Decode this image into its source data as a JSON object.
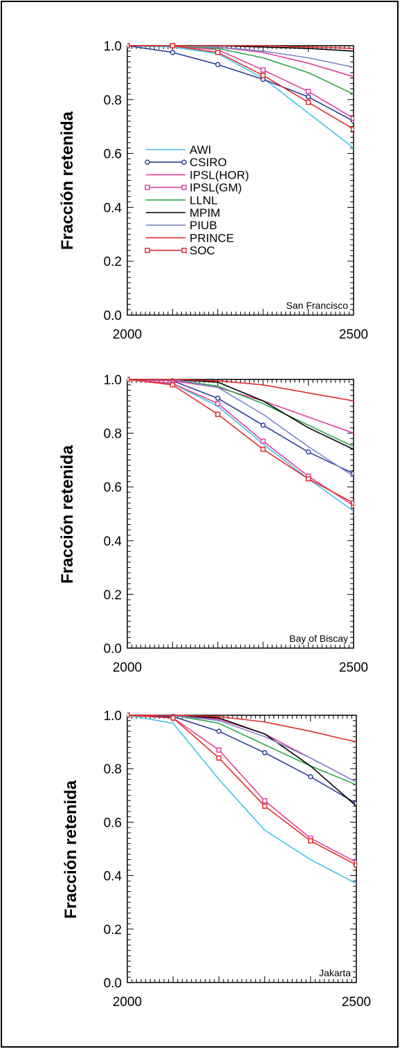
{
  "chart_data": [
    {
      "type": "line",
      "location": "San Francisco",
      "ylabel": "Fracción retenida",
      "xlim": [
        2000,
        2500
      ],
      "ylim": [
        0.0,
        1.0
      ],
      "xticks": [
        "2000",
        "2500"
      ],
      "yticks": [
        "0.0",
        "0.2",
        "0.4",
        "0.6",
        "0.8",
        "1.0"
      ],
      "legend": [
        "AWI",
        "CSIRO",
        "IPSL(HOR)",
        "IPSL(GM)",
        "LLNL",
        "MPIM",
        "PIUB",
        "PRINCE",
        "SOC"
      ],
      "legend_labels": [
        "AWI",
        "CSIRO",
        "IPSL(HOR)",
        "IPSL(GM)",
        "LLNL",
        "MPIM",
        "PIUB",
        "PRINCE",
        "SOC"
      ],
      "legend_placement": "lower-left",
      "series": [
        {
          "name": "AWI",
          "x": [
            2000,
            2100,
            2200,
            2300,
            2400,
            2500
          ],
          "y": [
            1.0,
            0.995,
            0.97,
            0.88,
            0.75,
            0.62
          ]
        },
        {
          "name": "CSIRO",
          "x": [
            2000,
            2100,
            2200,
            2300,
            2400,
            2500
          ],
          "y": [
            1.0,
            0.975,
            0.93,
            0.875,
            0.81,
            0.72
          ]
        },
        {
          "name": "IPSL(HOR)",
          "x": [
            2000,
            2100,
            2200,
            2300,
            2400,
            2500
          ],
          "y": [
            1.0,
            1.0,
            0.995,
            0.975,
            0.935,
            0.885
          ]
        },
        {
          "name": "IPSL(GM)",
          "x": [
            2000,
            2100,
            2200,
            2300,
            2400,
            2500
          ],
          "y": [
            1.0,
            1.0,
            0.985,
            0.91,
            0.83,
            0.73
          ]
        },
        {
          "name": "LLNL",
          "x": [
            2000,
            2100,
            2200,
            2300,
            2400,
            2500
          ],
          "y": [
            1.0,
            1.0,
            0.99,
            0.955,
            0.9,
            0.82
          ]
        },
        {
          "name": "MPIM",
          "x": [
            2000,
            2100,
            2200,
            2300,
            2400,
            2500
          ],
          "y": [
            1.0,
            1.0,
            1.0,
            0.995,
            0.99,
            0.98
          ]
        },
        {
          "name": "PIUB",
          "x": [
            2000,
            2100,
            2200,
            2300,
            2400,
            2500
          ],
          "y": [
            1.0,
            1.0,
            0.995,
            0.98,
            0.955,
            0.92
          ]
        },
        {
          "name": "PRINCE",
          "x": [
            2000,
            2100,
            2200,
            2300,
            2400,
            2500
          ],
          "y": [
            1.0,
            1.0,
            1.0,
            1.0,
            0.995,
            0.99
          ]
        },
        {
          "name": "SOC",
          "x": [
            2000,
            2100,
            2200,
            2300,
            2400,
            2500
          ],
          "y": [
            1.0,
            1.0,
            0.975,
            0.89,
            0.79,
            0.69
          ]
        }
      ]
    },
    {
      "type": "line",
      "location": "Bay of Biscay",
      "ylabel": "Fracción retenida",
      "xlim": [
        2000,
        2500
      ],
      "ylim": [
        0.0,
        1.0
      ],
      "xticks": [
        "2000",
        "2500"
      ],
      "yticks": [
        "0.0",
        "0.2",
        "0.4",
        "0.6",
        "0.8",
        "1.0"
      ],
      "series": [
        {
          "name": "AWI",
          "x": [
            2000,
            2100,
            2200,
            2300,
            2400,
            2500
          ],
          "y": [
            1.0,
            0.985,
            0.9,
            0.76,
            0.63,
            0.51
          ]
        },
        {
          "name": "CSIRO",
          "x": [
            2000,
            2100,
            2200,
            2300,
            2400,
            2500
          ],
          "y": [
            1.0,
            0.995,
            0.93,
            0.83,
            0.73,
            0.65
          ]
        },
        {
          "name": "IPSL(HOR)",
          "x": [
            2000,
            2100,
            2200,
            2300,
            2400,
            2500
          ],
          "y": [
            1.0,
            0.995,
            0.97,
            0.92,
            0.86,
            0.8
          ]
        },
        {
          "name": "IPSL(GM)",
          "x": [
            2000,
            2100,
            2200,
            2300,
            2400,
            2500
          ],
          "y": [
            1.0,
            0.985,
            0.91,
            0.77,
            0.64,
            0.53
          ]
        },
        {
          "name": "LLNL",
          "x": [
            2000,
            2100,
            2200,
            2300,
            2400,
            2500
          ],
          "y": [
            1.0,
            1.0,
            0.975,
            0.91,
            0.83,
            0.75
          ]
        },
        {
          "name": "MPIM",
          "x": [
            2000,
            2100,
            2200,
            2300,
            2400,
            2500
          ],
          "y": [
            1.0,
            1.0,
            0.99,
            0.92,
            0.82,
            0.74
          ]
        },
        {
          "name": "PIUB",
          "x": [
            2000,
            2100,
            2200,
            2300,
            2400,
            2500
          ],
          "y": [
            1.0,
            1.0,
            0.97,
            0.87,
            0.75,
            0.64
          ]
        },
        {
          "name": "PRINCE",
          "x": [
            2000,
            2100,
            2200,
            2300,
            2400,
            2500
          ],
          "y": [
            1.0,
            1.0,
            0.995,
            0.98,
            0.95,
            0.92
          ]
        },
        {
          "name": "SOC",
          "x": [
            2000,
            2100,
            2200,
            2300,
            2400,
            2500
          ],
          "y": [
            1.0,
            0.98,
            0.87,
            0.74,
            0.63,
            0.54
          ]
        }
      ]
    },
    {
      "type": "line",
      "location": "Jakarta",
      "ylabel": "Fracción retenida",
      "xlim": [
        2000,
        2500
      ],
      "ylim": [
        0.0,
        1.0
      ],
      "xticks": [
        "2000",
        "2500"
      ],
      "yticks": [
        "0.0",
        "0.2",
        "0.4",
        "0.6",
        "0.8",
        "1.0"
      ],
      "series": [
        {
          "name": "AWI",
          "x": [
            2000,
            2100,
            2200,
            2300,
            2400,
            2500
          ],
          "y": [
            1.0,
            0.97,
            0.76,
            0.57,
            0.46,
            0.37
          ]
        },
        {
          "name": "CSIRO",
          "x": [
            2000,
            2100,
            2200,
            2300,
            2400,
            2500
          ],
          "y": [
            1.0,
            0.995,
            0.94,
            0.86,
            0.77,
            0.67
          ]
        },
        {
          "name": "IPSL(HOR)",
          "x": [
            2000,
            2100,
            2200,
            2300,
            2400,
            2500
          ],
          "y": [
            1.0,
            1.0,
            0.985,
            0.93,
            0.84,
            0.75
          ]
        },
        {
          "name": "IPSL(GM)",
          "x": [
            2000,
            2100,
            2200,
            2300,
            2400,
            2500
          ],
          "y": [
            1.0,
            0.99,
            0.87,
            0.68,
            0.54,
            0.45
          ]
        },
        {
          "name": "LLNL",
          "x": [
            2000,
            2100,
            2200,
            2300,
            2400,
            2500
          ],
          "y": [
            1.0,
            1.0,
            0.97,
            0.89,
            0.81,
            0.74
          ]
        },
        {
          "name": "MPIM",
          "x": [
            2000,
            2100,
            2200,
            2300,
            2400,
            2500
          ],
          "y": [
            1.0,
            1.0,
            0.99,
            0.93,
            0.81,
            0.66
          ]
        },
        {
          "name": "PIUB",
          "x": [
            2000,
            2100,
            2200,
            2300,
            2400,
            2500
          ],
          "y": [
            1.0,
            1.0,
            0.98,
            0.92,
            0.84,
            0.75
          ]
        },
        {
          "name": "PRINCE",
          "x": [
            2000,
            2100,
            2200,
            2300,
            2400,
            2500
          ],
          "y": [
            1.0,
            1.0,
            0.995,
            0.975,
            0.94,
            0.9
          ]
        },
        {
          "name": "SOC",
          "x": [
            2000,
            2100,
            2200,
            2300,
            2400,
            2500
          ],
          "y": [
            1.0,
            0.99,
            0.84,
            0.66,
            0.53,
            0.44
          ]
        }
      ]
    }
  ],
  "styles": {
    "AWI": {
      "color": "#3ec3e6",
      "marker": "none"
    },
    "CSIRO": {
      "color": "#2b3d96",
      "marker": "circle"
    },
    "IPSL(HOR)": {
      "color": "#e0409a",
      "marker": "none"
    },
    "IPSL(GM)": {
      "color": "#e0409a",
      "marker": "square"
    },
    "LLNL": {
      "color": "#2aa84a",
      "marker": "none"
    },
    "MPIM": {
      "color": "#000000",
      "marker": "none"
    },
    "PIUB": {
      "color": "#7b86c8",
      "marker": "none"
    },
    "PRINCE": {
      "color": "#e32b2b",
      "marker": "none"
    },
    "SOC": {
      "color": "#e32b2b",
      "marker": "square"
    }
  }
}
